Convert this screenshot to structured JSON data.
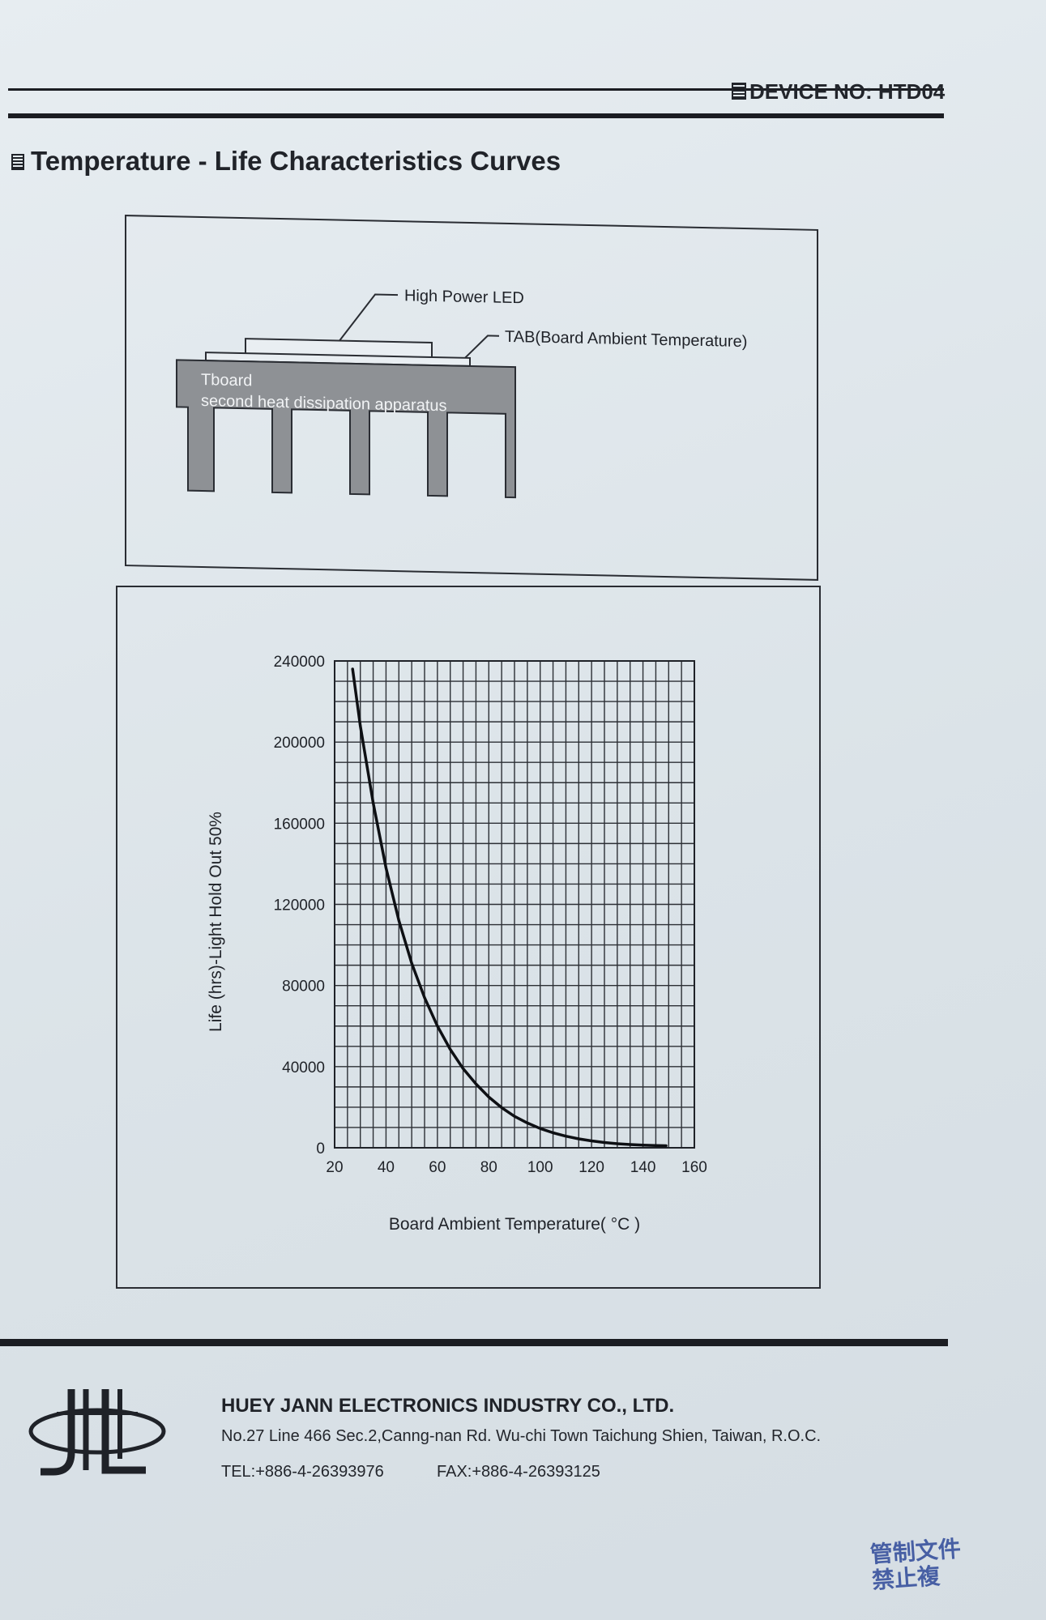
{
  "header": {
    "device_no": "DEVICE NO: HTD04",
    "section_title": "Temperature - Life Characteristics Curves"
  },
  "diagram": {
    "led_label": "High Power LED",
    "tab_label": "TAB(Board Ambient Temperature)",
    "tboard_label": "Tboard",
    "heatsink_label": "second heat dissipation apparatus"
  },
  "chart_data": {
    "type": "line",
    "xlabel": "Board Ambient Temperature( °C )",
    "ylabel": "Life (hrs)-Light Hold Out  50%",
    "xlim": [
      20,
      160
    ],
    "ylim": [
      0,
      240000
    ],
    "x_ticks": [
      "20",
      "40",
      "60",
      "80",
      "100",
      "120",
      "140",
      "160"
    ],
    "y_ticks": [
      "240000",
      "200000",
      "160000",
      "120000",
      "80000",
      "40000",
      "0"
    ],
    "grid": true,
    "series": [
      {
        "x": [
          27,
          30,
          35,
          40,
          45,
          50,
          55,
          60,
          65,
          70,
          75,
          80,
          85,
          90,
          95,
          100,
          105,
          110,
          115,
          120,
          125,
          130,
          135,
          140,
          145,
          149
        ],
        "y": [
          236000,
          208000,
          170000,
          138000,
          112000,
          91000,
          74000,
          60000,
          48500,
          39000,
          31500,
          25000,
          19800,
          15500,
          12200,
          9500,
          7400,
          5700,
          4400,
          3400,
          2600,
          2000,
          1600,
          1300,
          1100,
          1000
        ]
      }
    ]
  },
  "footer": {
    "company": "HUEY JANN ELECTRONICS INDUSTRY CO., LTD.",
    "address": "No.27 Line 466 Sec.2,Canng-nan Rd. Wu-chi Town Taichung Shien, Taiwan, R.O.C.",
    "tel": "TEL:+886-4-26393976",
    "fax": "FAX:+886-4-26393125",
    "stamp_line1": "管制文件",
    "stamp_line2": "禁止複"
  }
}
